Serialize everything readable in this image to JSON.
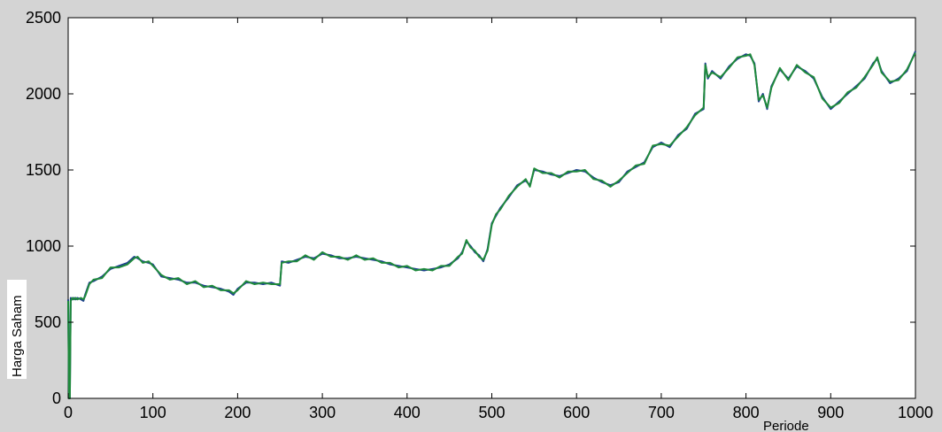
{
  "chart_data": {
    "type": "line",
    "title": "",
    "xlabel": "Periode",
    "ylabel": "Harga Saham",
    "xlim": [
      0,
      1000
    ],
    "ylim": [
      0,
      2500
    ],
    "xticks": [
      0,
      100,
      200,
      300,
      400,
      500,
      600,
      700,
      800,
      900,
      1000
    ],
    "yticks": [
      0,
      500,
      1000,
      1500,
      2000,
      2500
    ],
    "grid": false,
    "legend": "none",
    "colors": {
      "series_actual": "#1f3f8f",
      "series_predicted": "#1f8a3c",
      "figure_bg": "#d4d4d4",
      "axes_bg": "#ffffff"
    },
    "series": [
      {
        "x": [
          0,
          1,
          2,
          3,
          5,
          7,
          9,
          11,
          15,
          18,
          20,
          25,
          30,
          40,
          50,
          60,
          70,
          78,
          82,
          88,
          95,
          100,
          110,
          120,
          130,
          140,
          150,
          160,
          170,
          180,
          190,
          195,
          200,
          210,
          220,
          230,
          240,
          250,
          252,
          260,
          270,
          280,
          290,
          300,
          310,
          320,
          330,
          340,
          350,
          360,
          370,
          380,
          390,
          400,
          410,
          420,
          430,
          440,
          450,
          460,
          465,
          470,
          475,
          480,
          485,
          490,
          495,
          500,
          505,
          510,
          520,
          530,
          540,
          545,
          550,
          560,
          570,
          580,
          590,
          600,
          610,
          620,
          630,
          640,
          650,
          660,
          670,
          680,
          690,
          700,
          710,
          720,
          730,
          740,
          750,
          752,
          755,
          760,
          770,
          780,
          790,
          800,
          805,
          810,
          815,
          820,
          825,
          830,
          840,
          850,
          860,
          870,
          880,
          890,
          900,
          910,
          920,
          930,
          940,
          950,
          955,
          960,
          970,
          980,
          990,
          1000
        ],
        "y": [
          650,
          0,
          0,
          660,
          650,
          660,
          650,
          660,
          650,
          640,
          680,
          760,
          770,
          800,
          850,
          870,
          890,
          930,
          920,
          900,
          890,
          880,
          800,
          790,
          780,
          760,
          760,
          740,
          730,
          720,
          700,
          680,
          720,
          760,
          760,
          750,
          760,
          740,
          900,
          890,
          910,
          930,
          920,
          950,
          940,
          920,
          920,
          930,
          920,
          910,
          900,
          880,
          870,
          860,
          850,
          840,
          850,
          860,
          880,
          920,
          960,
          1030,
          1000,
          960,
          940,
          900,
          980,
          1150,
          1200,
          1250,
          1320,
          1400,
          1430,
          1400,
          1500,
          1490,
          1470,
          1460,
          1480,
          1500,
          1490,
          1450,
          1420,
          1400,
          1420,
          1490,
          1520,
          1550,
          1650,
          1680,
          1650,
          1730,
          1770,
          1870,
          1900,
          2200,
          2100,
          2150,
          2100,
          2180,
          2230,
          2260,
          2250,
          2200,
          1950,
          2000,
          1900,
          2050,
          2160,
          2100,
          2180,
          2150,
          2100,
          1980,
          1900,
          1950,
          2000,
          2050,
          2100,
          2200,
          2230,
          2150,
          2070,
          2100,
          2150,
          2280
        ]
      },
      {
        "x": [
          0,
          1,
          2,
          3,
          5,
          7,
          9,
          11,
          15,
          18,
          20,
          25,
          30,
          40,
          50,
          60,
          70,
          78,
          82,
          88,
          95,
          100,
          110,
          120,
          130,
          140,
          150,
          160,
          170,
          180,
          190,
          195,
          200,
          210,
          220,
          230,
          240,
          250,
          252,
          260,
          270,
          280,
          290,
          300,
          310,
          320,
          330,
          340,
          350,
          360,
          370,
          380,
          390,
          400,
          410,
          420,
          430,
          440,
          450,
          460,
          465,
          470,
          475,
          480,
          485,
          490,
          495,
          500,
          505,
          510,
          520,
          530,
          540,
          545,
          550,
          560,
          570,
          580,
          590,
          600,
          610,
          620,
          630,
          640,
          650,
          660,
          670,
          680,
          690,
          700,
          710,
          720,
          730,
          740,
          750,
          752,
          755,
          760,
          770,
          780,
          790,
          800,
          805,
          810,
          815,
          820,
          825,
          830,
          840,
          850,
          860,
          870,
          880,
          890,
          900,
          910,
          920,
          930,
          940,
          950,
          955,
          960,
          970,
          980,
          990,
          1000
        ],
        "y": [
          640,
          0,
          0,
          640,
          660,
          650,
          660,
          650,
          660,
          650,
          670,
          750,
          780,
          790,
          860,
          860,
          880,
          920,
          930,
          890,
          900,
          870,
          810,
          780,
          790,
          750,
          770,
          730,
          740,
          710,
          710,
          690,
          710,
          770,
          750,
          760,
          750,
          750,
          890,
          900,
          900,
          940,
          910,
          960,
          930,
          930,
          910,
          940,
          910,
          920,
          890,
          890,
          860,
          870,
          840,
          850,
          840,
          870,
          870,
          930,
          950,
          1040,
          990,
          970,
          930,
          910,
          970,
          1140,
          1210,
          1240,
          1330,
          1390,
          1440,
          1390,
          1510,
          1480,
          1480,
          1450,
          1490,
          1490,
          1500,
          1440,
          1430,
          1390,
          1430,
          1480,
          1530,
          1540,
          1660,
          1670,
          1660,
          1720,
          1780,
          1860,
          1910,
          2190,
          2110,
          2140,
          2110,
          2170,
          2240,
          2250,
          2260,
          2190,
          1960,
          1990,
          1910,
          2040,
          2170,
          2090,
          2190,
          2140,
          2110,
          1970,
          1910,
          1940,
          2010,
          2040,
          2110,
          2190,
          2240,
          2140,
          2080,
          2090,
          2160,
          2270
        ]
      }
    ]
  }
}
